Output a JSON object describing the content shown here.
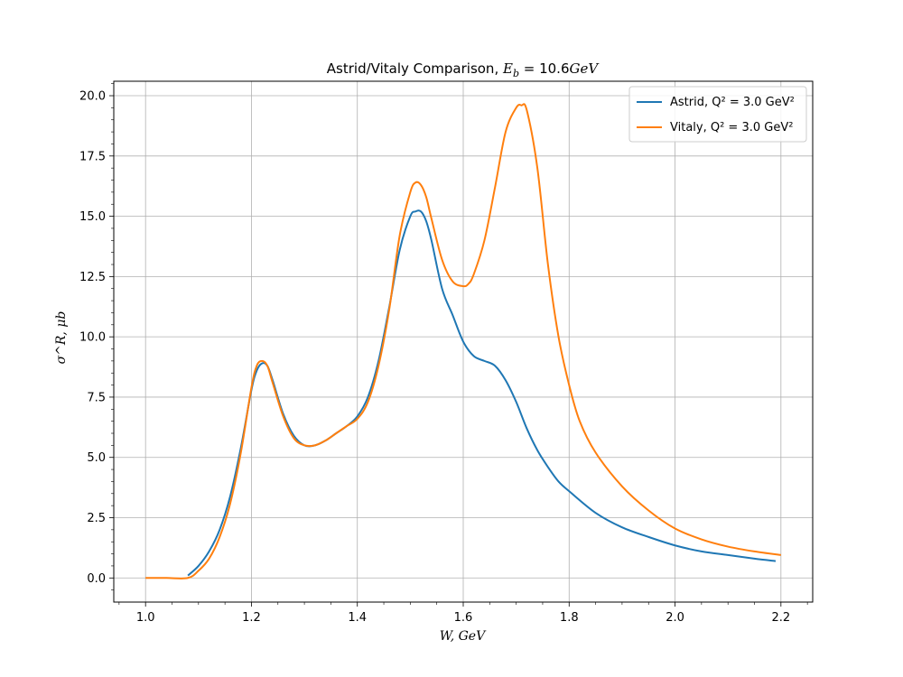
{
  "chart_data": {
    "type": "line",
    "title": "Astrid/Vitaly Comparison, E_b = 10.6GeV",
    "title_parts": {
      "text": "Astrid/Vitaly Comparison, ",
      "sym": "E",
      "sub": "b",
      "rest": " = 10.6",
      "unit": "GeV"
    },
    "xlabel": "W, GeV",
    "ylabel": "σ^R, μb",
    "xlim": [
      0.94,
      2.26
    ],
    "ylim": [
      -1.0,
      20.6
    ],
    "xticks": [
      1.0,
      1.2,
      1.4,
      1.6,
      1.8,
      2.0,
      2.2
    ],
    "xtick_labels": [
      "1.0",
      "1.2",
      "1.4",
      "1.6",
      "1.8",
      "2.0",
      "2.2"
    ],
    "yticks": [
      0.0,
      2.5,
      5.0,
      7.5,
      10.0,
      12.5,
      15.0,
      17.5,
      20.0
    ],
    "ytick_labels": [
      "0.0",
      "2.5",
      "5.0",
      "7.5",
      "10.0",
      "12.5",
      "15.0",
      "17.5",
      "20.0"
    ],
    "grid": true,
    "legend_position": "top-right",
    "series": [
      {
        "name": "Astrid, Q² = 3.0 GeV²",
        "color": "#1f77b4",
        "x": [
          1.08,
          1.1,
          1.12,
          1.14,
          1.16,
          1.18,
          1.2,
          1.21,
          1.22,
          1.23,
          1.24,
          1.26,
          1.28,
          1.3,
          1.32,
          1.34,
          1.36,
          1.38,
          1.4,
          1.42,
          1.44,
          1.46,
          1.48,
          1.5,
          1.51,
          1.52,
          1.53,
          1.54,
          1.56,
          1.58,
          1.6,
          1.62,
          1.64,
          1.66,
          1.68,
          1.7,
          1.72,
          1.74,
          1.76,
          1.78,
          1.8,
          1.85,
          1.9,
          1.95,
          2.0,
          2.05,
          2.1,
          2.15,
          2.19
        ],
        "y": [
          0.1,
          0.5,
          1.1,
          2.0,
          3.4,
          5.4,
          7.8,
          8.6,
          8.9,
          8.8,
          8.2,
          6.8,
          5.9,
          5.5,
          5.5,
          5.7,
          6.0,
          6.3,
          6.7,
          7.5,
          9.0,
          11.2,
          13.6,
          15.0,
          15.2,
          15.2,
          14.8,
          14.0,
          12.0,
          10.9,
          9.8,
          9.2,
          9.0,
          8.8,
          8.2,
          7.3,
          6.2,
          5.3,
          4.6,
          4.0,
          3.6,
          2.7,
          2.1,
          1.7,
          1.35,
          1.1,
          0.95,
          0.8,
          0.7
        ]
      },
      {
        "name": "Vitaly, Q² = 3.0 GeV²",
        "color": "#ff7f0e",
        "x": [
          1.0,
          1.04,
          1.08,
          1.1,
          1.12,
          1.14,
          1.16,
          1.18,
          1.2,
          1.21,
          1.22,
          1.23,
          1.24,
          1.26,
          1.28,
          1.3,
          1.32,
          1.34,
          1.36,
          1.38,
          1.4,
          1.42,
          1.44,
          1.46,
          1.48,
          1.5,
          1.51,
          1.52,
          1.53,
          1.54,
          1.56,
          1.58,
          1.6,
          1.61,
          1.62,
          1.64,
          1.66,
          1.68,
          1.7,
          1.71,
          1.72,
          1.74,
          1.76,
          1.78,
          1.8,
          1.82,
          1.85,
          1.9,
          1.95,
          2.0,
          2.05,
          2.1,
          2.15,
          2.2
        ],
        "y": [
          0.0,
          0.0,
          0.0,
          0.3,
          0.8,
          1.7,
          3.1,
          5.2,
          7.9,
          8.8,
          9.0,
          8.8,
          8.1,
          6.7,
          5.8,
          5.5,
          5.5,
          5.7,
          6.0,
          6.3,
          6.6,
          7.3,
          8.8,
          11.1,
          14.2,
          16.0,
          16.4,
          16.3,
          15.8,
          14.9,
          13.2,
          12.3,
          12.1,
          12.2,
          12.6,
          14.0,
          16.2,
          18.5,
          19.5,
          19.6,
          19.4,
          17.0,
          13.0,
          10.0,
          8.0,
          6.5,
          5.2,
          3.8,
          2.8,
          2.05,
          1.6,
          1.3,
          1.1,
          0.95
        ]
      }
    ]
  }
}
